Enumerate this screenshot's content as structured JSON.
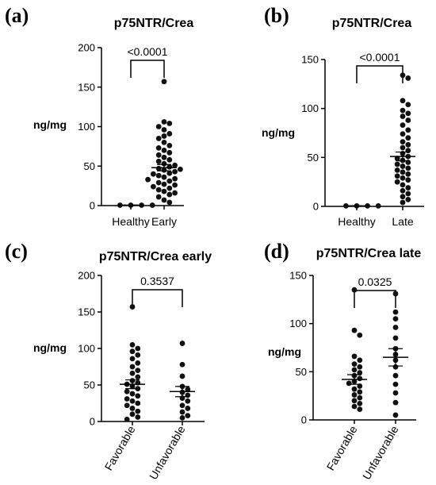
{
  "chart_data": [
    {
      "panel": "(a)",
      "type": "scatter",
      "title": "p75NTR/Crea",
      "ylabel": "ng/mg",
      "ylim": [
        0,
        200
      ],
      "yticks": [
        0,
        50,
        100,
        150,
        200
      ],
      "categories": [
        "Healthy",
        "Early"
      ],
      "comparison": "<0.0001",
      "groups": [
        {
          "name": "Healthy",
          "mean": 0.5,
          "sem": 0.2,
          "values": [
            0.5,
            0.5,
            0.5,
            0.5
          ]
        },
        {
          "name": "Early",
          "mean": 48,
          "sem": 4,
          "values": [
            157,
            106,
            104,
            100,
            96,
            91,
            88,
            85,
            80,
            76,
            73,
            70,
            67,
            64,
            61,
            58,
            56,
            53,
            51,
            49,
            47,
            46,
            45,
            43,
            41,
            40,
            38,
            36,
            34,
            33,
            31,
            29,
            27,
            26,
            24,
            22,
            20,
            18,
            16,
            14,
            11,
            7,
            4
          ]
        }
      ]
    },
    {
      "panel": "(b)",
      "type": "scatter",
      "title": "p75NTR/Crea",
      "ylabel": "ng/mg",
      "ylim": [
        0,
        150
      ],
      "yticks": [
        0,
        50,
        100,
        150
      ],
      "categories": [
        "Healthy",
        "Late"
      ],
      "comparison": "<0.0001",
      "groups": [
        {
          "name": "Healthy",
          "mean": 0.5,
          "sem": 0.2,
          "values": [
            0.5,
            0.5,
            0.5,
            0.5
          ]
        },
        {
          "name": "Late",
          "mean": 51,
          "sem": 4.5,
          "values": [
            134,
            131,
            108,
            104,
            98,
            95,
            92,
            88,
            83,
            78,
            74,
            70,
            66,
            63,
            60,
            57,
            54,
            51,
            49,
            47,
            45,
            43,
            41,
            39,
            37,
            35,
            33,
            31,
            29,
            27,
            25,
            22,
            19,
            16,
            13,
            10,
            7,
            4
          ]
        }
      ]
    },
    {
      "panel": "(c)",
      "type": "scatter",
      "title": "p75NTR/Crea early",
      "ylabel": "ng/mg",
      "ylim": [
        0,
        200
      ],
      "yticks": [
        0,
        50,
        100,
        150,
        200
      ],
      "categories": [
        "Favorable",
        "Unfavorable"
      ],
      "comparison": "0.3537",
      "groups": [
        {
          "name": "Favorable",
          "mean": 51,
          "sem": 6,
          "values": [
            157,
            105,
            100,
            96,
            91,
            86,
            80,
            75,
            70,
            66,
            61,
            56,
            53,
            51,
            48,
            45,
            41,
            38,
            35,
            31,
            28,
            25,
            22,
            18,
            14,
            10,
            6,
            3
          ]
        },
        {
          "name": "Unfavorable",
          "mean": 41,
          "sem": 7,
          "values": [
            107,
            78,
            62,
            48,
            44,
            40,
            36,
            32,
            28,
            22,
            18,
            13,
            8,
            5
          ]
        }
      ]
    },
    {
      "panel": "(d)",
      "type": "scatter",
      "title": "p75NTR/Crea late",
      "ylabel": "ng/mg",
      "ylim": [
        0,
        150
      ],
      "yticks": [
        0,
        50,
        100,
        150
      ],
      "categories": [
        "Favorable",
        "Unfavorable"
      ],
      "comparison": "0.0325",
      "groups": [
        {
          "name": "Favorable",
          "mean": 42,
          "sem": 5,
          "values": [
            135,
            93,
            88,
            66,
            62,
            58,
            55,
            52,
            49,
            46,
            43,
            40,
            38,
            35,
            32,
            29,
            26,
            23,
            20,
            17,
            14,
            11
          ]
        },
        {
          "name": "Unfavorable",
          "mean": 65,
          "sem": 9,
          "values": [
            131,
            112,
            105,
            96,
            85,
            74,
            68,
            62,
            55,
            46,
            37,
            28,
            18,
            5
          ]
        }
      ]
    }
  ]
}
